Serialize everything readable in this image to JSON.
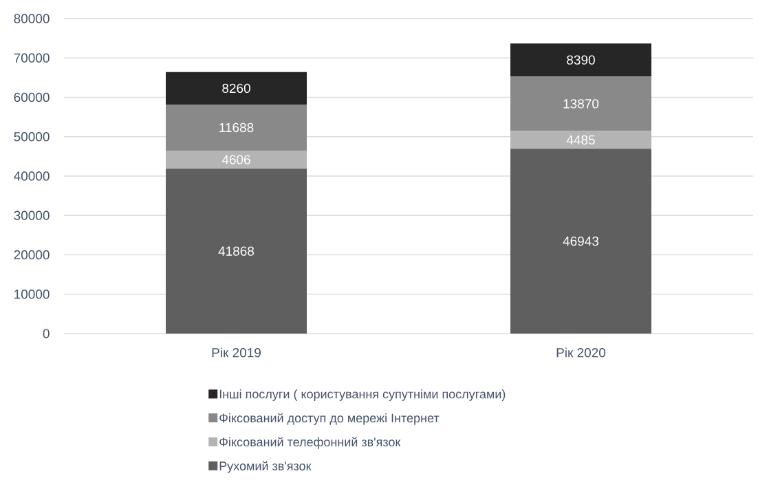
{
  "chart_data": {
    "type": "bar",
    "stacked": true,
    "categories": [
      "Рік 2019",
      "Рік 2020"
    ],
    "series": [
      {
        "name": "Рухомий зв'язок",
        "color": "#5f5f5f",
        "values": [
          41868,
          46943
        ]
      },
      {
        "name": "Фіксований телефонний зв'язок",
        "color": "#b4b4b4",
        "values": [
          4606,
          4485
        ]
      },
      {
        "name": "Фіксований доступ до мережі Інтернет",
        "color": "#898989",
        "values": [
          11688,
          13870
        ]
      },
      {
        "name": "Інші послуги ( користування супутніми послугами)",
        "color": "#262626",
        "values": [
          8260,
          8390
        ]
      }
    ],
    "ylim": [
      0,
      80000
    ],
    "yticks": [
      0,
      10000,
      20000,
      30000,
      40000,
      50000,
      60000,
      70000,
      80000
    ],
    "grid": "y",
    "legend": "bottom",
    "data_labels": true
  }
}
